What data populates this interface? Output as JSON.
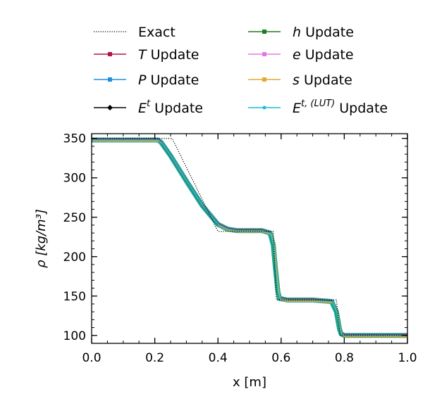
{
  "chart_data": {
    "type": "line",
    "xlabel": "x [m]",
    "ylabel": "ρ [kg/m³]",
    "xlim": [
      0.0,
      1.0
    ],
    "ylim": [
      90,
      356
    ],
    "xticks": [
      "0.0",
      "0.2",
      "0.4",
      "0.6",
      "0.8",
      "1.0"
    ],
    "yticks": [
      "100",
      "150",
      "200",
      "250",
      "300",
      "350"
    ],
    "grid": false,
    "legend_position": "top",
    "exact": {
      "name": "Exact",
      "color": "#000000",
      "x": [
        0.0,
        0.255,
        0.4,
        0.575,
        0.585,
        0.775,
        0.787,
        1.0
      ],
      "y": [
        350,
        350,
        232,
        232,
        145,
        145,
        100,
        100
      ]
    },
    "updates_profile": {
      "x": [
        0.0,
        0.21,
        0.22,
        0.25,
        0.3,
        0.35,
        0.4,
        0.43,
        0.46,
        0.5,
        0.54,
        0.565,
        0.575,
        0.582,
        0.59,
        0.595,
        0.62,
        0.7,
        0.76,
        0.775,
        0.785,
        0.79,
        0.8,
        0.85,
        1.0
      ],
      "y": [
        348,
        348,
        345,
        328,
        296,
        265,
        241,
        235,
        233,
        233,
        233,
        230,
        215,
        185,
        155,
        147,
        145,
        145,
        143,
        130,
        108,
        102,
        100,
        100,
        100
      ]
    },
    "series": [
      {
        "name": "T Update",
        "color": "#b5124f",
        "marker": "s"
      },
      {
        "name": "P Update",
        "color": "#1f8fe0",
        "marker": "s"
      },
      {
        "name": "E^t Update",
        "color": "#000000",
        "marker": "D"
      },
      {
        "name": "h Update",
        "color": "#1a7d1a",
        "marker": "s"
      },
      {
        "name": "e Update",
        "color": "#e07be0",
        "marker": "s"
      },
      {
        "name": "s Update",
        "color": "#e6a830",
        "marker": "s"
      },
      {
        "name": "E^{t,(LUT)} Update",
        "color": "#1abcd6",
        "marker": "o"
      }
    ]
  },
  "legend": {
    "items": [
      {
        "key": "exact",
        "prefix": "",
        "italic": "",
        "sup": "",
        "suffix": "Exact"
      },
      {
        "key": "T",
        "prefix": "",
        "italic": "T",
        "sup": "",
        "suffix": " Update"
      },
      {
        "key": "P",
        "prefix": "",
        "italic": "P",
        "sup": "",
        "suffix": " Update"
      },
      {
        "key": "Et",
        "prefix": "",
        "italic": "E",
        "sup": "t",
        "suffix": " Update"
      },
      {
        "key": "h",
        "prefix": "",
        "italic": "h",
        "sup": "",
        "suffix": " Update"
      },
      {
        "key": "e",
        "prefix": "",
        "italic": "e",
        "sup": "",
        "suffix": " Update"
      },
      {
        "key": "s",
        "prefix": "",
        "italic": "s",
        "sup": "",
        "suffix": " Update"
      },
      {
        "key": "Elut",
        "prefix": "",
        "italic": "E",
        "sup": "t, (LUT)",
        "suffix": " Update"
      }
    ]
  }
}
